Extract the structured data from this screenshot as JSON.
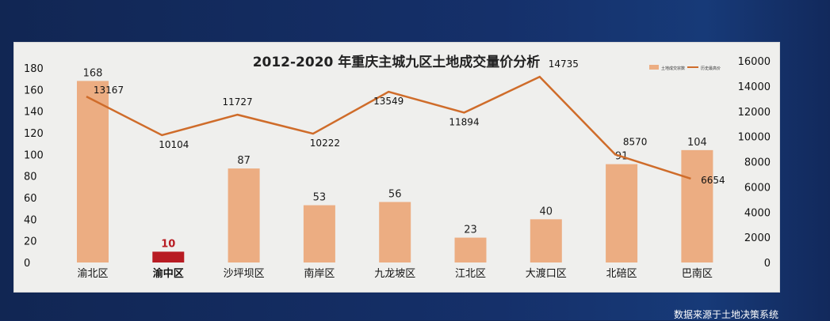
{
  "chart_data": {
    "type": "bar+line",
    "title": "2012-2020 年重庆主城九区土地成交量价分析",
    "categories": [
      "渝北区",
      "渝中区",
      "沙坪坝区",
      "南岸区",
      "九龙坡区",
      "江北区",
      "大渡口区",
      "北碚区",
      "巴南区"
    ],
    "highlight_category": "渝中区",
    "series": [
      {
        "name": "土地成交宗数",
        "type": "bar",
        "axis": "left",
        "values": [
          168,
          10,
          87,
          53,
          56,
          23,
          40,
          91,
          104
        ],
        "color": "#ecad82",
        "highlight_color": "#b81c23"
      },
      {
        "name": "历史最高价",
        "type": "line",
        "axis": "right",
        "values": [
          13167,
          10104,
          11727,
          10222,
          13549,
          11894,
          14735,
          8570,
          6654
        ],
        "color": "#cf6c2a"
      }
    ],
    "ylim_left": [
      0,
      180
    ],
    "yticks_left": [
      0,
      20,
      40,
      60,
      80,
      100,
      120,
      140,
      160,
      180
    ],
    "ylim_right": [
      0,
      16000
    ],
    "yticks_right": [
      0,
      2000,
      4000,
      6000,
      8000,
      10000,
      12000,
      14000,
      16000
    ],
    "legend": "top-right",
    "grid": false
  },
  "footer": {
    "source": "数据来源于土地决策系统"
  }
}
